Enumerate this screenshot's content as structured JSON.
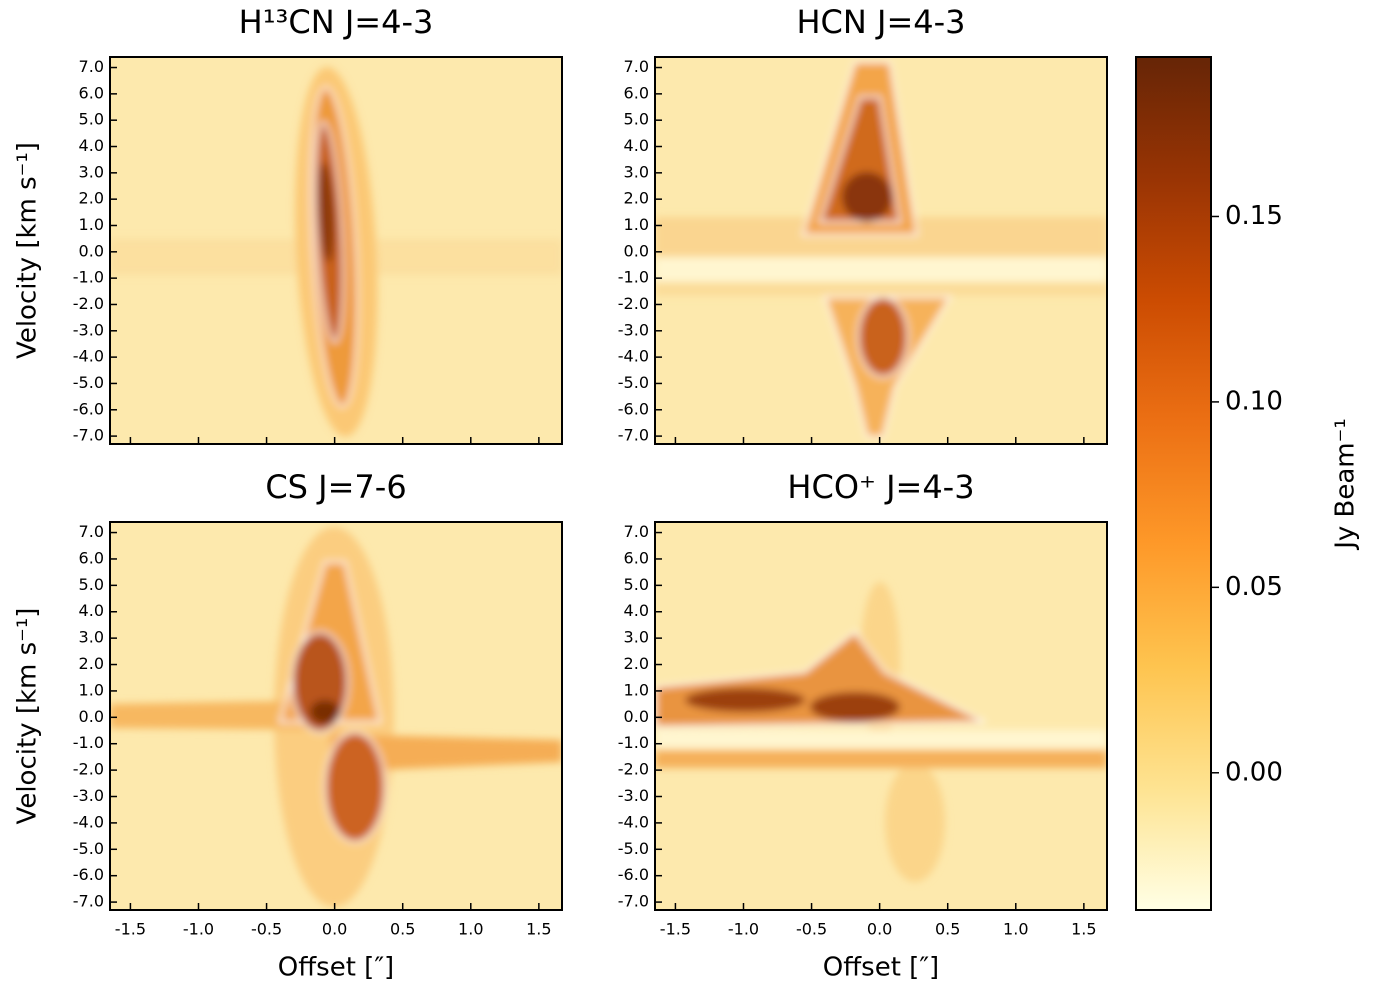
{
  "chart_data": [
    {
      "type": "heatmap",
      "title": "H¹³CN J=4-3",
      "ylabel": "Velocity [km s⁻¹]",
      "xlim": [
        -1.65,
        1.67
      ],
      "ylim": [
        -7.3,
        7.4
      ],
      "xticklabels": false,
      "xticks": [
        -1.5,
        -1,
        -0.5,
        0,
        0.5,
        1,
        1.5
      ],
      "yticks": [
        {
          "value": 7,
          "label": "7.0"
        },
        {
          "value": 6,
          "label": "6.0"
        },
        {
          "value": 5,
          "label": "5.0"
        },
        {
          "value": 4,
          "label": "4.0"
        },
        {
          "value": 3,
          "label": "3.0"
        },
        {
          "value": 2,
          "label": "2.0"
        },
        {
          "value": 1,
          "label": "1.0"
        },
        {
          "value": 0,
          "label": "0.0"
        },
        {
          "value": -1,
          "label": "-1.0"
        },
        {
          "value": -2,
          "label": "-2.0"
        },
        {
          "value": -3,
          "label": "-3.0"
        },
        {
          "value": -4,
          "label": "-4.0"
        },
        {
          "value": -5,
          "label": "-5.0"
        },
        {
          "value": -6,
          "label": "-6.0"
        },
        {
          "value": -7,
          "label": "-7.0"
        }
      ]
    },
    {
      "type": "heatmap",
      "title": "HCN J=4-3",
      "xlim": [
        -1.65,
        1.67
      ],
      "ylim": [
        -7.3,
        7.4
      ],
      "xticklabels": false,
      "xticks": [
        -1.5,
        -1,
        -0.5,
        0,
        0.5,
        1,
        1.5
      ],
      "yticks": [
        {
          "value": 7,
          "label": "7.0"
        },
        {
          "value": 6,
          "label": "6.0"
        },
        {
          "value": 5,
          "label": "5.0"
        },
        {
          "value": 4,
          "label": "4.0"
        },
        {
          "value": 3,
          "label": "3.0"
        },
        {
          "value": 2,
          "label": "2.0"
        },
        {
          "value": 1,
          "label": "1.0"
        },
        {
          "value": 0,
          "label": "0.0"
        },
        {
          "value": -1,
          "label": "-1.0"
        },
        {
          "value": -2,
          "label": "-2.0"
        },
        {
          "value": -3,
          "label": "-3.0"
        },
        {
          "value": -4,
          "label": "-4.0"
        },
        {
          "value": -5,
          "label": "-5.0"
        },
        {
          "value": -6,
          "label": "-6.0"
        },
        {
          "value": -7,
          "label": "-7.0"
        }
      ]
    },
    {
      "type": "heatmap",
      "title": "CS J=7-6",
      "ylabel": "Velocity [km s⁻¹]",
      "xlabel": "Offset [″]",
      "xlim": [
        -1.65,
        1.67
      ],
      "ylim": [
        -7.3,
        7.4
      ],
      "xticks": [
        -1.5,
        {
          "value": -1,
          "label": "-1.0"
        },
        -0.5,
        {
          "value": 0,
          "label": "0.0"
        },
        0.5,
        {
          "value": 1,
          "label": "1.0"
        },
        1.5
      ],
      "yticks": [
        {
          "value": 7,
          "label": "7.0"
        },
        {
          "value": 6,
          "label": "6.0"
        },
        {
          "value": 5,
          "label": "5.0"
        },
        {
          "value": 4,
          "label": "4.0"
        },
        {
          "value": 3,
          "label": "3.0"
        },
        {
          "value": 2,
          "label": "2.0"
        },
        {
          "value": 1,
          "label": "1.0"
        },
        {
          "value": 0,
          "label": "0.0"
        },
        {
          "value": -1,
          "label": "-1.0"
        },
        {
          "value": -2,
          "label": "-2.0"
        },
        {
          "value": -3,
          "label": "-3.0"
        },
        {
          "value": -4,
          "label": "-4.0"
        },
        {
          "value": -5,
          "label": "-5.0"
        },
        {
          "value": -6,
          "label": "-6.0"
        },
        {
          "value": -7,
          "label": "-7.0"
        }
      ]
    },
    {
      "type": "heatmap",
      "title": "HCO⁺ J=4-3",
      "xlabel": "Offset [″]",
      "xlim": [
        -1.65,
        1.67
      ],
      "ylim": [
        -7.3,
        7.4
      ],
      "xticks": [
        -1.5,
        {
          "value": -1,
          "label": "-1.0"
        },
        -0.5,
        {
          "value": 0,
          "label": "0.0"
        },
        0.5,
        {
          "value": 1,
          "label": "1.0"
        },
        1.5
      ],
      "yticks": [
        {
          "value": 7,
          "label": "7.0"
        },
        {
          "value": 6,
          "label": "6.0"
        },
        {
          "value": 5,
          "label": "5.0"
        },
        {
          "value": 4,
          "label": "4.0"
        },
        {
          "value": 3,
          "label": "3.0"
        },
        {
          "value": 2,
          "label": "2.0"
        },
        {
          "value": 1,
          "label": "1.0"
        },
        {
          "value": 0,
          "label": "0.0"
        },
        {
          "value": -1,
          "label": "-1.0"
        },
        {
          "value": -2,
          "label": "-2.0"
        },
        {
          "value": -3,
          "label": "-3.0"
        },
        {
          "value": -4,
          "label": "-4.0"
        },
        {
          "value": -5,
          "label": "-5.0"
        },
        {
          "value": -6,
          "label": "-6.0"
        },
        {
          "value": -7,
          "label": "-7.0"
        }
      ]
    },
    {
      "type": "colorbar",
      "label": "Jy Beam⁻¹",
      "ylim": [
        -0.037,
        0.193
      ],
      "yticks": [
        {
          "value": 0,
          "label": "0.00"
        },
        0.05,
        {
          "value": 0.1,
          "label": "0.10"
        },
        0.15
      ],
      "colors": [
        "#ffffe5",
        "#fee391",
        "#fec44f",
        "#fe9929",
        "#ec7014",
        "#cc4c02",
        "#993404",
        "#662506"
      ]
    }
  ]
}
